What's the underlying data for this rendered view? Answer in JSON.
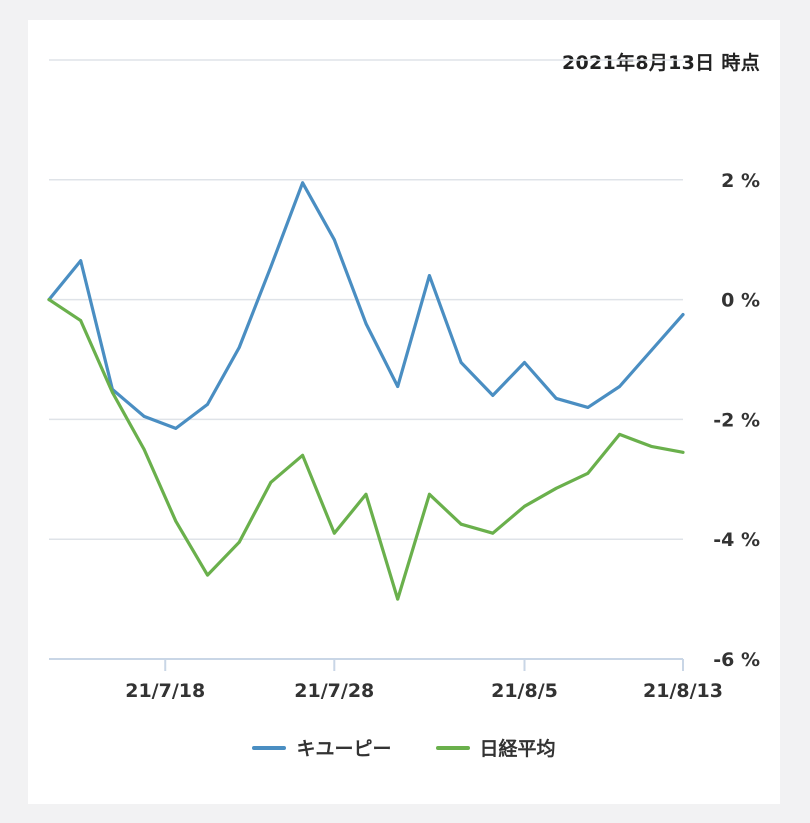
{
  "timestamp": "2021年8月13日 時点",
  "chart_data": {
    "type": "line",
    "x": [
      "21/7/13",
      "21/7/14",
      "21/7/15",
      "21/7/16",
      "21/7/19",
      "21/7/20",
      "21/7/21",
      "21/7/26",
      "21/7/27",
      "21/7/28",
      "21/7/29",
      "21/7/30",
      "21/8/2",
      "21/8/3",
      "21/8/4",
      "21/8/5",
      "21/8/6",
      "21/8/10",
      "21/8/11",
      "21/8/12",
      "21/8/13"
    ],
    "x_ticks": [
      "21/7/18",
      "21/7/28",
      "21/8/5",
      "21/8/13"
    ],
    "y_ticks": [
      "2 %",
      "0 %",
      "-2 %",
      "-4 %",
      "-6 %"
    ],
    "ylim": [
      -6,
      4
    ],
    "xlabel": "",
    "ylabel": "",
    "grid": true,
    "legend_position": "bottom",
    "series": [
      {
        "name": "キユーピー",
        "color": "#4a8ec2",
        "values": [
          0.0,
          0.65,
          -1.5,
          -1.95,
          -2.15,
          -1.75,
          -0.8,
          0.55,
          1.95,
          1.0,
          -0.4,
          -1.45,
          0.4,
          -1.05,
          -1.6,
          -1.05,
          -1.65,
          -1.8,
          -1.45,
          -0.85,
          -0.25
        ]
      },
      {
        "name": "日経平均",
        "color": "#6ab04c",
        "values": [
          0.0,
          -0.35,
          -1.55,
          -2.5,
          -3.7,
          -4.6,
          -4.05,
          -3.05,
          -2.6,
          -3.9,
          -3.25,
          -5.0,
          -3.25,
          -3.75,
          -3.9,
          -3.45,
          -3.15,
          -2.9,
          -2.25,
          -2.45,
          -2.55
        ]
      }
    ]
  }
}
